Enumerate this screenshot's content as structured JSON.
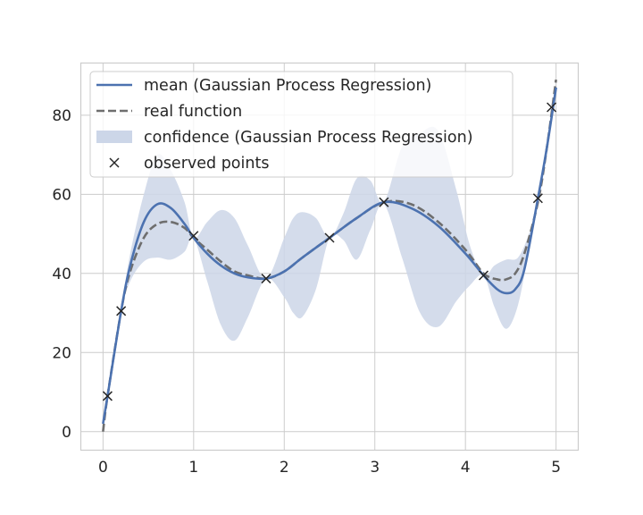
{
  "chart_data": {
    "type": "line",
    "title": "",
    "xlabel": "",
    "ylabel": "",
    "xlim": [
      -0.25,
      5.25
    ],
    "ylim": [
      -4.8,
      93.3
    ],
    "xticks": [
      0,
      1,
      2,
      3,
      4,
      5
    ],
    "yticks": [
      0,
      20,
      40,
      60,
      80
    ],
    "xtick_labels": [
      "0",
      "1",
      "2",
      "3",
      "4",
      "5"
    ],
    "ytick_labels": [
      "0",
      "20",
      "40",
      "60",
      "80"
    ],
    "grid": true,
    "legend_position": "upper-left",
    "legend": [
      "mean (Gaussian Process Regression)",
      "real function",
      "confidence (Gaussian Process Regression)",
      "observed points"
    ],
    "colors": {
      "mean": "#4c72b0",
      "real": "#6e6e6e",
      "confidence": "#ccd6e8",
      "points": "#262626",
      "grid": "#cccccc",
      "axes_edge": "#cccccc"
    },
    "series": [
      {
        "name": "mean (Gaussian Process Regression)",
        "x": [
          0,
          0.05,
          0.2,
          0.3,
          0.45,
          0.6,
          0.75,
          0.9,
          1.0,
          1.15,
          1.3,
          1.45,
          1.6,
          1.8,
          2.0,
          2.2,
          2.5,
          2.8,
          3.1,
          3.4,
          3.7,
          4.0,
          4.2,
          4.35,
          4.45,
          4.55,
          4.65,
          4.8,
          4.9,
          5.0
        ],
        "y": [
          2,
          9,
          30.5,
          42,
          53,
          57.5,
          56.5,
          52.5,
          49,
          45,
          42,
          40,
          39,
          38.7,
          40.5,
          44,
          49,
          54,
          58,
          56.5,
          52,
          45,
          39.5,
          36,
          35,
          36,
          41,
          59,
          72,
          87
        ]
      },
      {
        "name": "real function",
        "x": [
          0,
          0.05,
          0.2,
          0.3,
          0.45,
          0.6,
          0.75,
          0.9,
          1.0,
          1.15,
          1.3,
          1.45,
          1.6,
          1.8,
          2.0,
          2.2,
          2.5,
          2.8,
          3.1,
          3.4,
          3.7,
          4.0,
          4.2,
          4.35,
          4.45,
          4.55,
          4.65,
          4.8,
          4.9,
          5.0
        ],
        "y": [
          0,
          9,
          30.5,
          40.5,
          49,
          52.5,
          53,
          51.5,
          49,
          46,
          43,
          40.5,
          39.5,
          38.7,
          40.5,
          44,
          49,
          54,
          58,
          57.5,
          53,
          46,
          40,
          38.5,
          38.5,
          40,
          45,
          58,
          72,
          89
        ]
      },
      {
        "name": "confidence (Gaussian Process Regression)",
        "x": [
          0,
          0.05,
          0.2,
          0.3,
          0.45,
          0.6,
          0.75,
          0.9,
          1.0,
          1.15,
          1.3,
          1.45,
          1.6,
          1.8,
          2.0,
          2.1,
          2.2,
          2.35,
          2.5,
          2.65,
          2.8,
          2.95,
          3.1,
          3.3,
          3.5,
          3.7,
          3.9,
          4.05,
          4.2,
          4.32,
          4.45,
          4.58,
          4.7,
          4.8,
          4.9,
          5.0
        ],
        "lower": [
          1,
          9,
          30,
          38,
          43,
          44,
          43.5,
          45.5,
          49,
          38,
          27,
          23,
          29,
          38.7,
          34,
          30,
          29,
          36,
          49,
          48.5,
          43.5,
          51,
          57.5,
          44,
          30,
          26.5,
          33,
          37,
          39.5,
          31.5,
          26,
          32,
          46,
          59,
          71,
          86
        ],
        "upper": [
          3,
          9,
          31,
          45,
          60,
          70,
          66,
          58,
          49,
          53,
          56,
          54,
          47,
          38.7,
          49,
          54,
          55.5,
          54,
          49,
          55,
          64,
          63.5,
          58,
          72,
          75.5,
          76,
          61,
          47,
          39.5,
          42,
          43.5,
          44,
          50,
          59,
          73,
          88
        ]
      }
    ],
    "points": {
      "name": "observed points",
      "x": [
        0.05,
        0.2,
        1.0,
        1.8,
        2.5,
        3.1,
        4.2,
        4.8,
        4.95
      ],
      "y": [
        9,
        30.5,
        49.5,
        38.7,
        49,
        58,
        39.5,
        59,
        82
      ]
    }
  }
}
